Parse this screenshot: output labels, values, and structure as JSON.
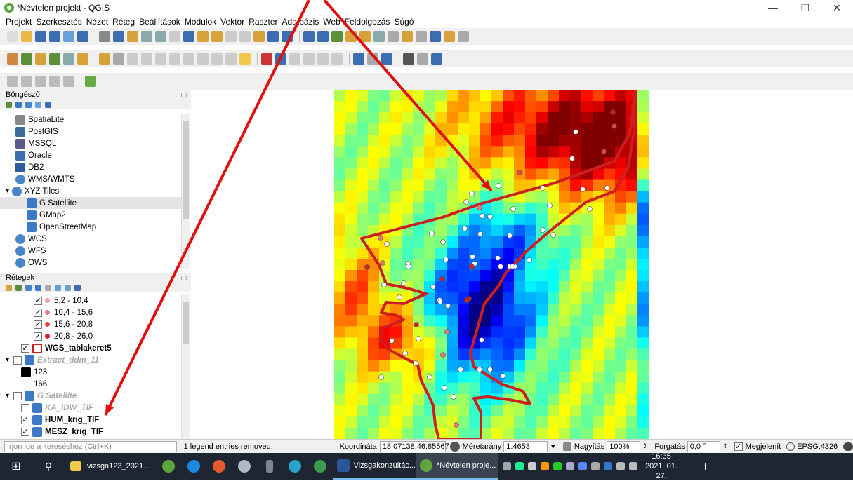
{
  "window": {
    "title": "*Névtelen projekt - QGIS",
    "minimize": "—",
    "restore": "❐",
    "close": "✕"
  },
  "menu": [
    "Projekt",
    "Szerkesztés",
    "Nézet",
    "Réteg",
    "Beállítások",
    "Modulok",
    "Vektor",
    "Raszter",
    "Adatbázis",
    "Web",
    "Feldolgozás",
    "Súgó"
  ],
  "browser": {
    "title": "Böngésző",
    "items": [
      {
        "label": "SpatiaLite",
        "icon": "feather-icon"
      },
      {
        "label": "PostGIS",
        "icon": "elephant-icon"
      },
      {
        "label": "MSSQL",
        "icon": "mssql-icon"
      },
      {
        "label": "Oracle",
        "icon": "oracle-icon"
      },
      {
        "label": "DB2",
        "icon": "db2-icon"
      },
      {
        "label": "WMS/WMTS",
        "icon": "globe-icon"
      },
      {
        "label": "XYZ Tiles",
        "icon": "globe-icon"
      },
      {
        "label": "G Satellite",
        "icon": "tiles-icon"
      },
      {
        "label": "GMap2",
        "icon": "tiles-icon"
      },
      {
        "label": "OpenStreetMap",
        "icon": "tiles-icon"
      },
      {
        "label": "WCS",
        "icon": "globe-icon"
      },
      {
        "label": "WFS",
        "icon": "globe-icon"
      },
      {
        "label": "OWS",
        "icon": "globe-icon"
      }
    ]
  },
  "layers": {
    "title": "Rétegek",
    "items": [
      {
        "label": "5,2 - 10,4"
      },
      {
        "label": "10,4 - 15,6"
      },
      {
        "label": "15,6 - 20,8"
      },
      {
        "label": "20,8 - 26,0"
      },
      {
        "label": "WGS_tablakeret5"
      },
      {
        "label": "Extract_ddm_11"
      },
      {
        "label": "123"
      },
      {
        "label": "166"
      },
      {
        "label": "G Satellite"
      },
      {
        "label": "KA_IDW_TIF"
      },
      {
        "label": "HUM_krig_TIF"
      },
      {
        "label": "MESZ_krig_TIF"
      }
    ]
  },
  "colors": {
    "dot1": "#f3a4a4",
    "dot2": "#ec7676",
    "dot3": "#e44646",
    "dot4": "#d61f1f",
    "frame": "#cc1f1f",
    "arrow": "#e01010"
  },
  "status": {
    "search_placeholder": "Írjon ide a kereséshez (Ctrl+K)",
    "message": "1 legend entries removed.",
    "coord_label": "Koordináta",
    "coord_value": "18.07138,46.85567",
    "scale_label": "Méretarány",
    "scale_value": "1:4653",
    "zoom_label": "Nagyítás",
    "zoom_value": "100%",
    "rot_label": "Forgatás",
    "rot_value": "0,0 °",
    "render_label": "Megjelenít",
    "crs": "EPSG:4326"
  },
  "taskbar": {
    "explorer": "vizsga123_2021...",
    "word": "Vizsgakonzultác...",
    "qgis": "*Névtelen proje...",
    "time": "16:35",
    "date": "2021. 01. 27."
  }
}
